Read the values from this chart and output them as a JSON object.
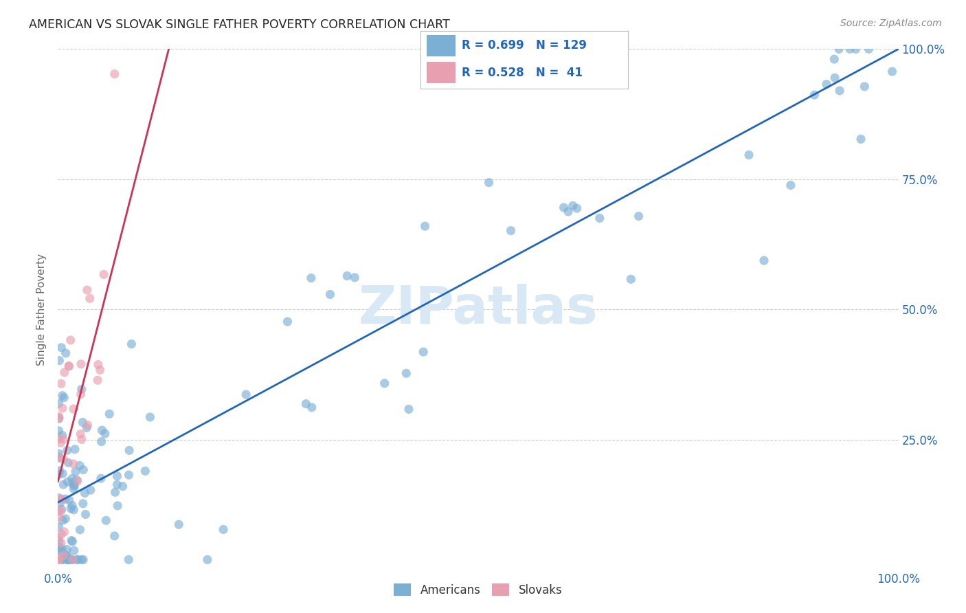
{
  "title": "AMERICAN VS SLOVAK SINGLE FATHER POVERTY CORRELATION CHART",
  "source": "Source: ZipAtlas.com",
  "ylabel": "Single Father Poverty",
  "xlim": [
    0.0,
    1.0
  ],
  "ylim": [
    0.0,
    1.0
  ],
  "american_color": "#7bafd4",
  "american_edge_color": "#7bafd4",
  "slovak_color": "#e8a0b0",
  "slovak_edge_color": "#e8a0b0",
  "american_line_color": "#2266bb",
  "slovak_line_color": "#cc3355",
  "american_R": 0.699,
  "american_N": 129,
  "slovak_R": 0.528,
  "slovak_N": 41,
  "legend_text_color": "#2266bb",
  "watermark_color": "#d8e8f5",
  "background_color": "#ffffff",
  "grid_color": "#cccccc",
  "ytick_color": "#2266bb",
  "xtick_color": "#2266bb",
  "right_yticks": [
    0.25,
    0.5,
    0.75,
    1.0
  ],
  "right_yticklabels": [
    "25.0%",
    "50.0%",
    "75.0%",
    "100.0%"
  ],
  "xticks": [
    0.0,
    1.0
  ],
  "xticklabels": [
    "0.0%",
    "100.0%"
  ],
  "am_line_x0": 0.0,
  "am_line_x1": 1.0,
  "am_line_y0": 0.13,
  "am_line_y1": 1.0,
  "sk_line_x0": 0.0,
  "sk_line_x1": 0.135,
  "sk_line_y0": 0.17,
  "sk_line_y1": 1.02
}
